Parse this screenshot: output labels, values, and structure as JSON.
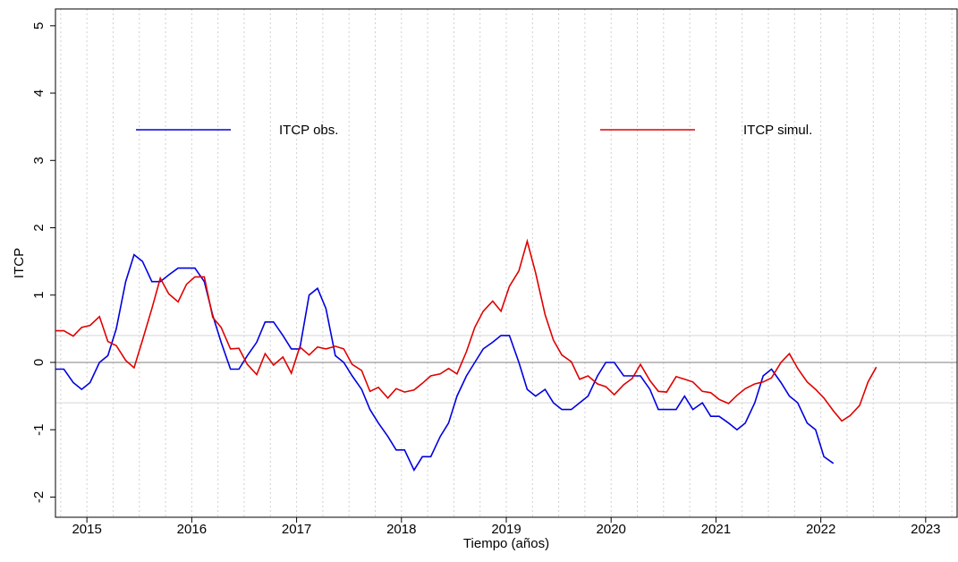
{
  "chart_data": {
    "type": "line",
    "xlabel": "Tiempo (años)",
    "ylabel": "ITCP",
    "x": [
      2014.7,
      2014.78,
      2014.87,
      2014.95,
      2015.03,
      2015.12,
      2015.2,
      2015.28,
      2015.37,
      2015.45,
      2015.53,
      2015.62,
      2015.7,
      2015.78,
      2015.87,
      2015.95,
      2016.03,
      2016.12,
      2016.2,
      2016.28,
      2016.37,
      2016.45,
      2016.53,
      2016.62,
      2016.7,
      2016.78,
      2016.87,
      2016.95,
      2017.03,
      2017.12,
      2017.2,
      2017.28,
      2017.37,
      2017.45,
      2017.53,
      2017.62,
      2017.7,
      2017.78,
      2017.87,
      2017.95,
      2018.03,
      2018.12,
      2018.2,
      2018.28,
      2018.37,
      2018.45,
      2018.53,
      2018.62,
      2018.7,
      2018.78,
      2018.87,
      2018.95,
      2019.03,
      2019.12,
      2019.2,
      2019.28,
      2019.37,
      2019.45,
      2019.53,
      2019.62,
      2019.7,
      2019.78,
      2019.87,
      2019.95,
      2020.03,
      2020.12,
      2020.2,
      2020.28,
      2020.37,
      2020.45,
      2020.53,
      2020.62,
      2020.7,
      2020.78,
      2020.87,
      2020.95,
      2021.03,
      2021.12,
      2021.2,
      2021.28,
      2021.37,
      2021.45,
      2021.53,
      2021.62,
      2021.7,
      2021.78,
      2021.87,
      2021.95,
      2022.03,
      2022.12,
      2022.2,
      2022.28,
      2022.37,
      2022.45,
      2022.53
    ],
    "series": [
      {
        "name": "ITCP obs.",
        "color": "#0000e0",
        "values": [
          -0.1,
          -0.1,
          -0.3,
          -0.4,
          -0.3,
          0,
          0.1,
          0.5,
          1.2,
          1.6,
          1.5,
          1.2,
          1.2,
          1.3,
          1.4,
          1.4,
          1.4,
          1.2,
          0.7,
          0.3,
          -0.1,
          -0.1,
          0.1,
          0.3,
          0.6,
          0.6,
          0.4,
          0.2,
          0.2,
          1.0,
          1.1,
          0.8,
          0.1,
          0,
          -0.2,
          -0.4,
          -0.7,
          -0.9,
          -1.1,
          -1.3,
          -1.3,
          -1.6,
          -1.4,
          -1.4,
          -1.1,
          -0.9,
          -0.5,
          -0.2,
          0,
          0.2,
          0.3,
          0.4,
          0.4,
          0,
          -0.4,
          -0.5,
          -0.4,
          -0.6,
          -0.7,
          -0.7,
          -0.6,
          -0.5,
          -0.2,
          0,
          0,
          -0.2,
          -0.2,
          -0.2,
          -0.4,
          -0.7,
          -0.7,
          -0.7,
          -0.5,
          -0.7,
          -0.6,
          -0.8,
          -0.8,
          -0.9,
          -1.0,
          -0.9,
          -0.6,
          -0.2,
          -0.1,
          -0.3,
          -0.5,
          -0.6,
          -0.9,
          -1.0,
          -1.4,
          -1.5,
          null,
          null,
          null,
          null,
          null
        ]
      },
      {
        "name": "ITCP simul.",
        "color": "#e00000",
        "values": [
          0.47,
          0.47,
          0.39,
          0.52,
          0.55,
          0.68,
          0.31,
          0.25,
          0.03,
          -0.08,
          0.33,
          0.8,
          1.25,
          1.02,
          0.9,
          1.16,
          1.27,
          1.27,
          0.67,
          0.52,
          0.2,
          0.21,
          -0.03,
          -0.18,
          0.13,
          -0.04,
          0.08,
          -0.16,
          0.23,
          0.11,
          0.23,
          0.2,
          0.24,
          0.2,
          -0.03,
          -0.12,
          -0.43,
          -0.37,
          -0.53,
          -0.39,
          -0.44,
          -0.41,
          -0.31,
          -0.2,
          -0.17,
          -0.09,
          -0.17,
          0.16,
          0.52,
          0.76,
          0.91,
          0.76,
          1.13,
          1.36,
          1.8,
          1.33,
          0.71,
          0.33,
          0.11,
          0.01,
          -0.25,
          -0.2,
          -0.32,
          -0.36,
          -0.48,
          -0.33,
          -0.24,
          -0.03,
          -0.27,
          -0.43,
          -0.44,
          -0.21,
          -0.25,
          -0.29,
          -0.43,
          -0.45,
          -0.55,
          -0.61,
          -0.49,
          -0.39,
          -0.32,
          -0.29,
          -0.23,
          0,
          0.13,
          -0.09,
          -0.29,
          -0.4,
          -0.53,
          -0.72,
          -0.87,
          -0.79,
          -0.64,
          -0.29,
          -0.07
        ]
      }
    ],
    "xlim": [
      2014.7,
      2023.3
    ],
    "ylim": [
      -2.3,
      5.25
    ],
    "xticks": [
      2015,
      2016,
      2017,
      2018,
      2019,
      2020,
      2021,
      2022,
      2023
    ],
    "yticks": [
      -2,
      -1,
      0,
      1,
      2,
      3,
      4,
      5
    ],
    "xgrid_minor": [
      2014.75,
      2015,
      2015.25,
      2015.5,
      2015.75,
      2016,
      2016.25,
      2016.5,
      2016.75,
      2017,
      2017.25,
      2017.5,
      2017.75,
      2018,
      2018.25,
      2018.5,
      2018.75,
      2019,
      2019.25,
      2019.5,
      2019.75,
      2020,
      2020.25,
      2020.5,
      2020.75,
      2021,
      2021.25,
      2021.5,
      2021.75,
      2022,
      2022.25,
      2022.5,
      2022.75,
      2023,
      2023.25
    ],
    "hlines": [
      {
        "value": 0,
        "color": "#999999"
      },
      {
        "value": 0.4,
        "color": "#dddddd"
      },
      {
        "value": -0.6,
        "color": "#dddddd"
      }
    ],
    "legend": "top"
  }
}
